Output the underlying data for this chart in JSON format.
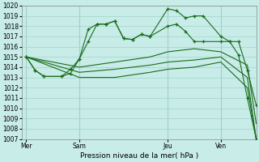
{
  "xlabel": "Pression niveau de la mer( hPa )",
  "bg_color": "#c8ece8",
  "grid_color": "#a8d8d0",
  "line_color": "#1a6b1a",
  "ylim": [
    1007,
    1020
  ],
  "ytick_min": 1007,
  "ytick_max": 1020,
  "day_labels": [
    "Mer",
    "Sam",
    "Jeu",
    "Ven"
  ],
  "day_positions": [
    0,
    6,
    16,
    22
  ],
  "xlim": [
    -0.5,
    26
  ],
  "series": [
    {
      "x": [
        0,
        1,
        2,
        4,
        5,
        6,
        7,
        8,
        9,
        10,
        11,
        12,
        13,
        14,
        16,
        17,
        18,
        19,
        20,
        22,
        23,
        24,
        25,
        26
      ],
      "y": [
        1015,
        1013.7,
        1013.1,
        1013.1,
        1013.8,
        1014.8,
        1017.7,
        1018.2,
        1018.2,
        1018.5,
        1016.8,
        1016.7,
        1017.2,
        1017.0,
        1019.7,
        1019.5,
        1018.8,
        1019.0,
        1019.0,
        1017.0,
        1016.5,
        1016.5,
        1013.7,
        1010.3
      ],
      "marker": "+"
    },
    {
      "x": [
        0,
        1,
        2,
        4,
        5,
        6,
        7,
        8,
        9,
        10,
        11,
        12,
        13,
        14,
        16,
        17,
        18,
        19,
        20,
        22,
        23,
        24,
        25,
        26
      ],
      "y": [
        1015,
        1013.7,
        1013.1,
        1013.1,
        1013.4,
        1014.8,
        1016.5,
        1018.2,
        1018.2,
        1018.5,
        1016.8,
        1016.7,
        1017.2,
        1017.0,
        1018.0,
        1018.2,
        1017.5,
        1016.5,
        1016.5,
        1016.5,
        1016.5,
        1015.2,
        1011.0,
        1007.0
      ],
      "marker": "+"
    },
    {
      "x": [
        0,
        6,
        10,
        14,
        16,
        19,
        22,
        25,
        26
      ],
      "y": [
        1015,
        1014.0,
        1014.5,
        1015.0,
        1015.5,
        1015.8,
        1015.5,
        1014.2,
        1008.5
      ],
      "marker": null
    },
    {
      "x": [
        0,
        6,
        10,
        14,
        16,
        19,
        22,
        25,
        26
      ],
      "y": [
        1015,
        1013.5,
        1013.8,
        1014.2,
        1014.5,
        1014.7,
        1015.0,
        1013.0,
        1007.0
      ],
      "marker": null
    },
    {
      "x": [
        0,
        6,
        10,
        14,
        16,
        19,
        22,
        25,
        26
      ],
      "y": [
        1015,
        1013.0,
        1013.0,
        1013.5,
        1013.8,
        1014.0,
        1014.5,
        1012.0,
        1007.0
      ],
      "marker": null
    }
  ]
}
